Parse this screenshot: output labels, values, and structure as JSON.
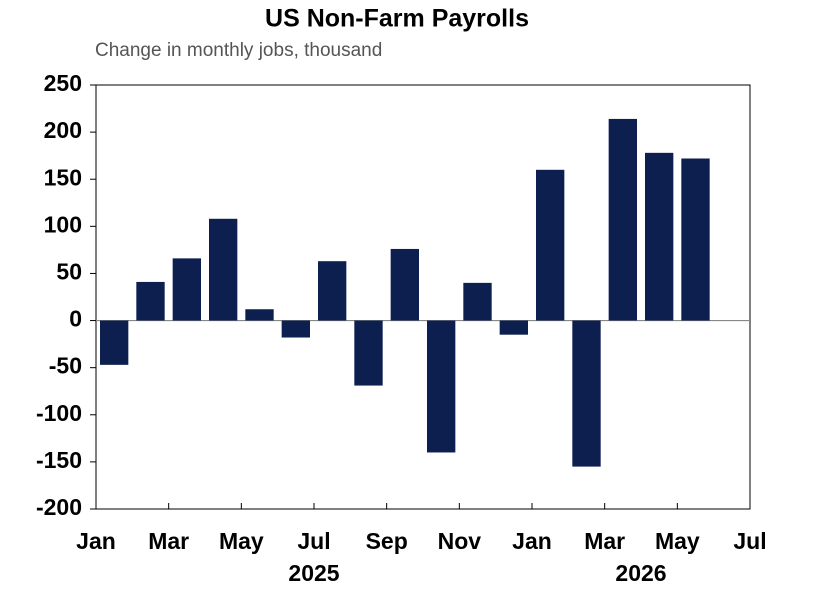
{
  "chart_data": {
    "type": "bar",
    "title": "US Non-Farm Payrolls",
    "subtitle": "Change in monthly jobs, thousand",
    "categories": [
      "Jan",
      null,
      "Mar",
      null,
      "May",
      null,
      "Jul",
      null,
      "Sep",
      null,
      "Nov",
      null,
      "Jan",
      null,
      "Mar",
      null,
      "May",
      null,
      "Jul"
    ],
    "values": [
      -47,
      41,
      66,
      108,
      12,
      -18,
      63,
      -69,
      76,
      -140,
      40,
      -15,
      160,
      -155,
      214,
      178,
      172,
      null,
      null
    ],
    "year_labels": [
      "2025",
      "2026"
    ],
    "color": "#0d1f4f",
    "ylim": [
      -200,
      250
    ],
    "yticks": [
      -200,
      -150,
      -100,
      -50,
      0,
      50,
      100,
      150,
      200,
      250
    ]
  }
}
